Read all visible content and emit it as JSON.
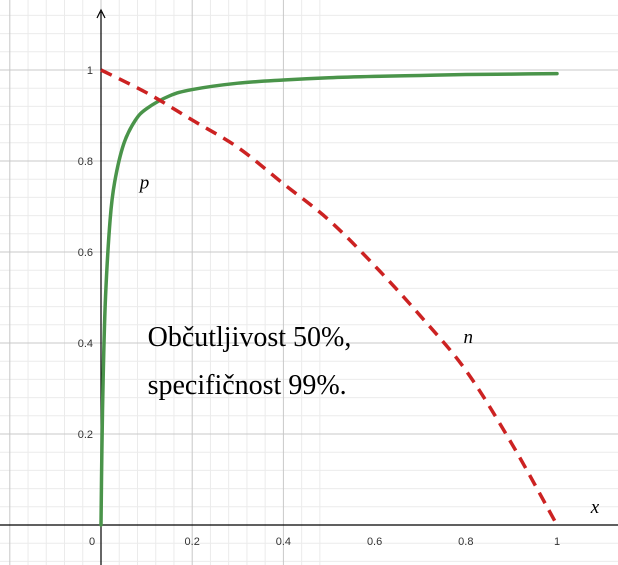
{
  "chart_data": {
    "type": "line",
    "title": "",
    "xlabel": "x",
    "ylabel": "",
    "xlim": [
      -0.2,
      1.13
    ],
    "ylim": [
      -0.05,
      1.15
    ],
    "x_ticks": [
      "0",
      "0.2",
      "0.4",
      "0.6",
      "0.8",
      "1"
    ],
    "y_ticks": [
      "0.2",
      "0.4",
      "0.6",
      "0.8",
      "1"
    ],
    "grid": true,
    "series": [
      {
        "name": "p",
        "style": "solid",
        "color": "#4a944a",
        "x": [
          0,
          0.002,
          0.005,
          0.01,
          0.02,
          0.03,
          0.05,
          0.075,
          0.1,
          0.15,
          0.2,
          0.3,
          0.4,
          0.5,
          0.6,
          0.7,
          0.8,
          0.9,
          1
        ],
        "y": [
          0,
          0.168,
          0.335,
          0.503,
          0.671,
          0.754,
          0.838,
          0.889,
          0.915,
          0.943,
          0.957,
          0.971,
          0.978,
          0.983,
          0.986,
          0.988,
          0.99,
          0.991,
          0.992
        ]
      },
      {
        "name": "n",
        "style": "dashed",
        "color": "#cc2222",
        "x": [
          0,
          0.1,
          0.2,
          0.3,
          0.4,
          0.5,
          0.6,
          0.7,
          0.8,
          0.9,
          1
        ],
        "y": [
          1,
          0.95,
          0.89,
          0.83,
          0.75,
          0.67,
          0.57,
          0.46,
          0.34,
          0.18,
          0
        ]
      }
    ],
    "curve_labels": [
      {
        "text": "p",
        "x": 0.085,
        "y": 0.74
      },
      {
        "text": "n",
        "x": 0.795,
        "y": 0.4
      }
    ],
    "annotation": {
      "lines": [
        "Občutljivost 50%,",
        "specifičnost 99%."
      ],
      "x": 0.1,
      "y": 0.42
    }
  }
}
